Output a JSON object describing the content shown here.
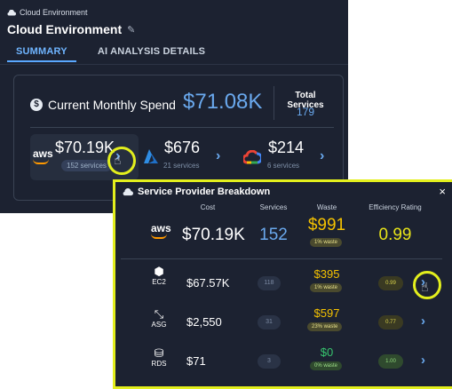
{
  "header": {
    "breadcrumb": "Cloud Environment",
    "title": "Cloud Environment"
  },
  "tabs": [
    {
      "label": "SUMMARY",
      "active": true
    },
    {
      "label": "AI ANALYSIS DETAILS",
      "active": false
    }
  ],
  "summary": {
    "spend_label": "Current Monthly Spend",
    "spend_value": "$71.08K",
    "total_label": "Total Services",
    "total_value": "179",
    "providers": [
      {
        "name": "aws",
        "logo_text": "aws",
        "amount": "$70.19K",
        "services": "152 services"
      },
      {
        "name": "azure",
        "amount": "$676",
        "services": "21 services"
      },
      {
        "name": "gcp",
        "amount": "$214",
        "services": "6 services"
      }
    ]
  },
  "breakdown": {
    "title": "Service Provider Breakdown",
    "close": "×",
    "columns": [
      "Cost",
      "Services",
      "Waste",
      "Efficiency Rating"
    ],
    "provider_row": {
      "logo_text": "aws",
      "cost": "$70.19K",
      "services": "152",
      "waste": "$991",
      "waste_pct": "1% waste",
      "efficiency": "0.99"
    },
    "services": [
      {
        "name": "EC2",
        "cost": "$67.57K",
        "count": "118",
        "waste": "$395",
        "waste_pct": "1% waste",
        "efficiency": "0.99"
      },
      {
        "name": "ASG",
        "cost": "$2,550",
        "count": "31",
        "waste": "$597",
        "waste_pct": "23% waste",
        "efficiency": "0.77"
      },
      {
        "name": "RDS",
        "cost": "$71",
        "count": "3",
        "waste": "$0",
        "waste_pct": "0% waste",
        "efficiency": "1.00"
      }
    ]
  },
  "icons": {
    "chevron": "›"
  },
  "colors": {
    "accent_blue": "#6aa9ee",
    "highlight_yellow": "#e3ef1d",
    "waste_yellow": "#f5c200",
    "zero_waste_green": "#37c46e",
    "aws_orange": "#ff9900"
  }
}
